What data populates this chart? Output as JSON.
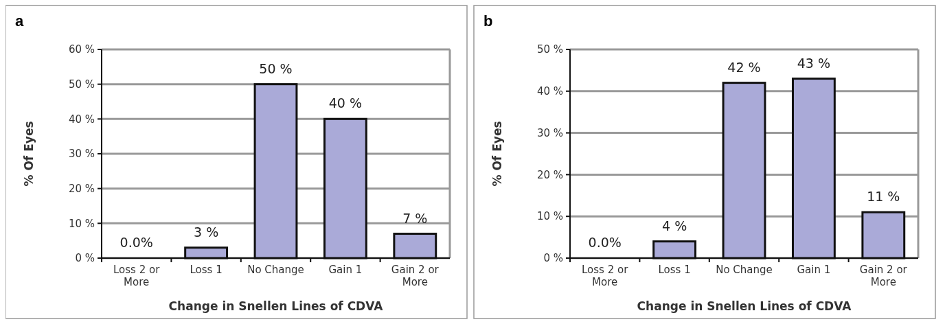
{
  "chart_data": [
    {
      "type": "bar",
      "title": "a",
      "xlabel": "Change in Snellen Lines of CDVA",
      "ylabel": "% Of Eyes",
      "categories": [
        "Loss 2 or More",
        "Loss 1",
        "No Change",
        "Gain 1",
        "Gain 2 or More"
      ],
      "values": [
        0,
        3,
        50,
        40,
        7
      ],
      "value_labels": [
        "0.0%",
        "3 %",
        "50 %",
        "40 %",
        "7 %"
      ],
      "color": "#aaaad8",
      "ylim": [
        0,
        60
      ],
      "yticks": [
        {
          "value": 0,
          "label": "0 %"
        },
        {
          "value": 10,
          "label": "10 %"
        },
        {
          "value": 20,
          "label": "20 %"
        },
        {
          "value": 30,
          "label": "30 %"
        },
        {
          "value": 40,
          "label": "40 %"
        },
        {
          "value": 50,
          "label": "50 %"
        },
        {
          "value": 60,
          "label": "60 %"
        }
      ],
      "grid": "y"
    },
    {
      "type": "bar",
      "title": "b",
      "xlabel": "Change in Snellen Lines of CDVA",
      "ylabel": "% Of Eyes",
      "categories": [
        "Loss 2 or More",
        "Loss 1",
        "No Change",
        "Gain 1",
        "Gain 2 or More"
      ],
      "values": [
        0,
        4,
        42,
        43,
        11
      ],
      "value_labels": [
        "0.0%",
        "4 %",
        "42 %",
        "43 %",
        "11 %"
      ],
      "color": "#aaaad8",
      "ylim": [
        0,
        50
      ],
      "yticks": [
        {
          "value": 0,
          "label": "0 %"
        },
        {
          "value": 10,
          "label": "10 %"
        },
        {
          "value": 20,
          "label": "20 %"
        },
        {
          "value": 30,
          "label": "30 %"
        },
        {
          "value": 40,
          "label": "40 %"
        },
        {
          "value": 50,
          "label": "50 %"
        }
      ],
      "grid": "y"
    }
  ]
}
